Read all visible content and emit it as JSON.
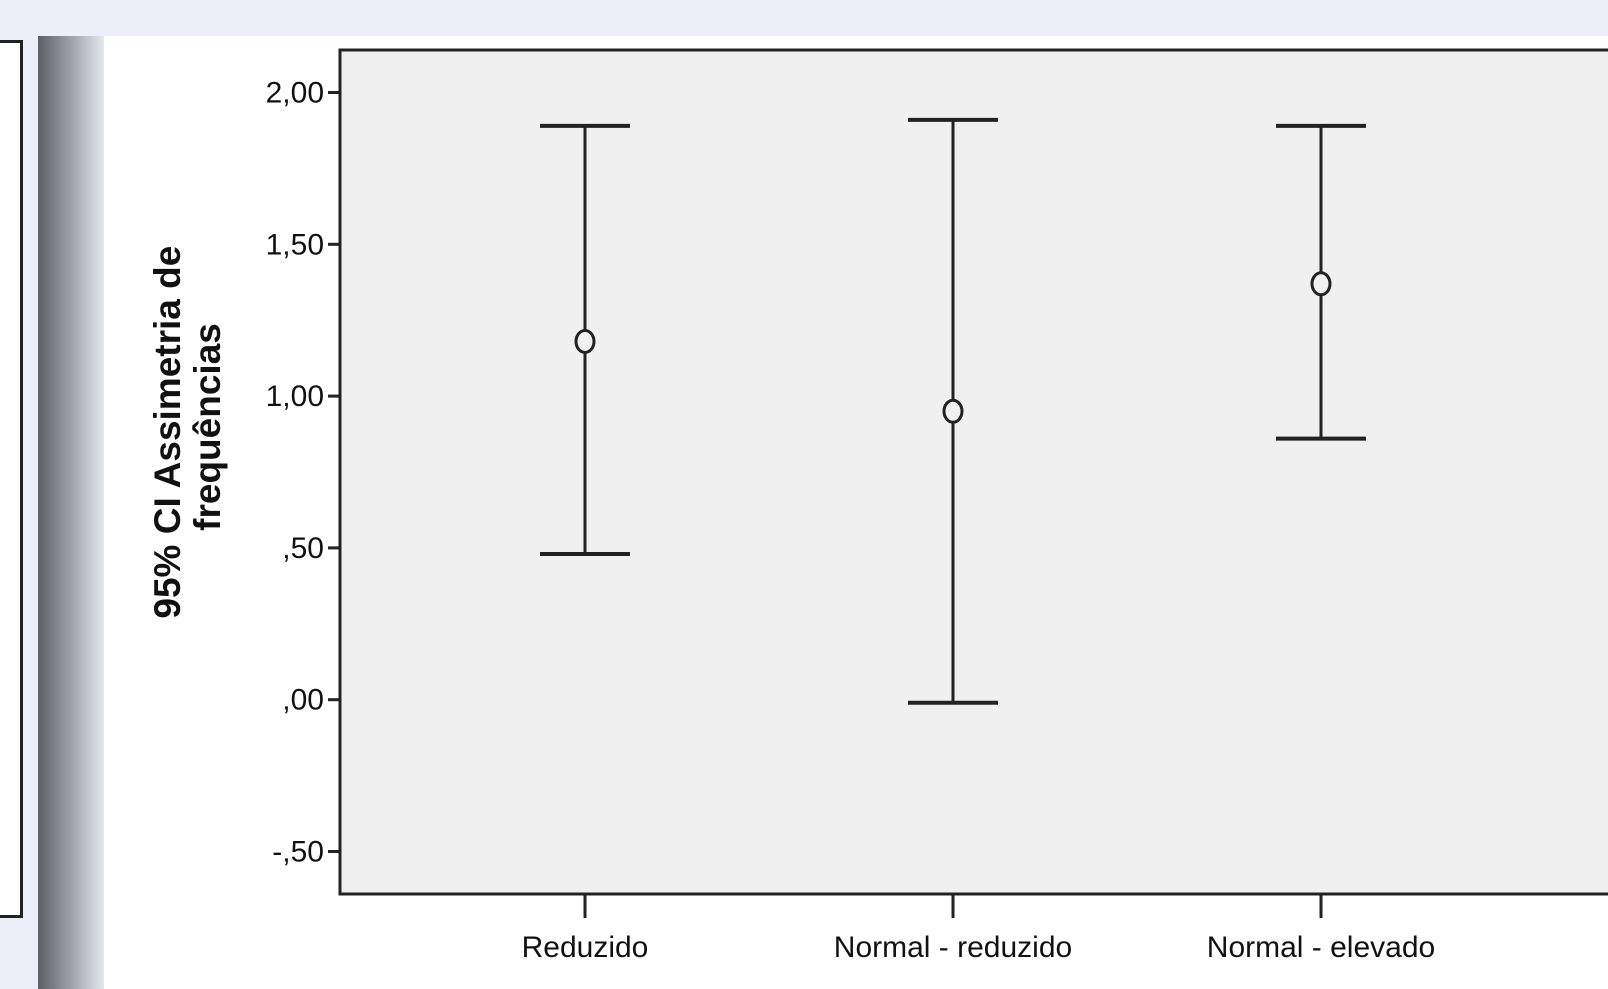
{
  "chart_data": {
    "type": "errorbar",
    "ylabel_lines": [
      "95% CI Assimetria de",
      "frequências"
    ],
    "categories": [
      "Reduzido",
      "Normal - reduzido",
      "Normal - elevado"
    ],
    "series": [
      {
        "means": [
          1.18,
          0.95,
          1.37
        ],
        "lower": [
          0.48,
          -0.01,
          0.86
        ],
        "upper": [
          1.89,
          1.91,
          1.89
        ]
      }
    ],
    "yticks": [
      2.0,
      1.5,
      1.0,
      0.5,
      0.0,
      -0.5
    ],
    "ytick_labels": [
      "2,00",
      "1,50",
      "1,00",
      ",50",
      ",00",
      "-,50"
    ],
    "ylim": [
      -0.64,
      2.14
    ],
    "grid": false,
    "colors": {
      "plot_background": "#f0f0f0",
      "line": "#222222",
      "marker": "#222222"
    }
  }
}
